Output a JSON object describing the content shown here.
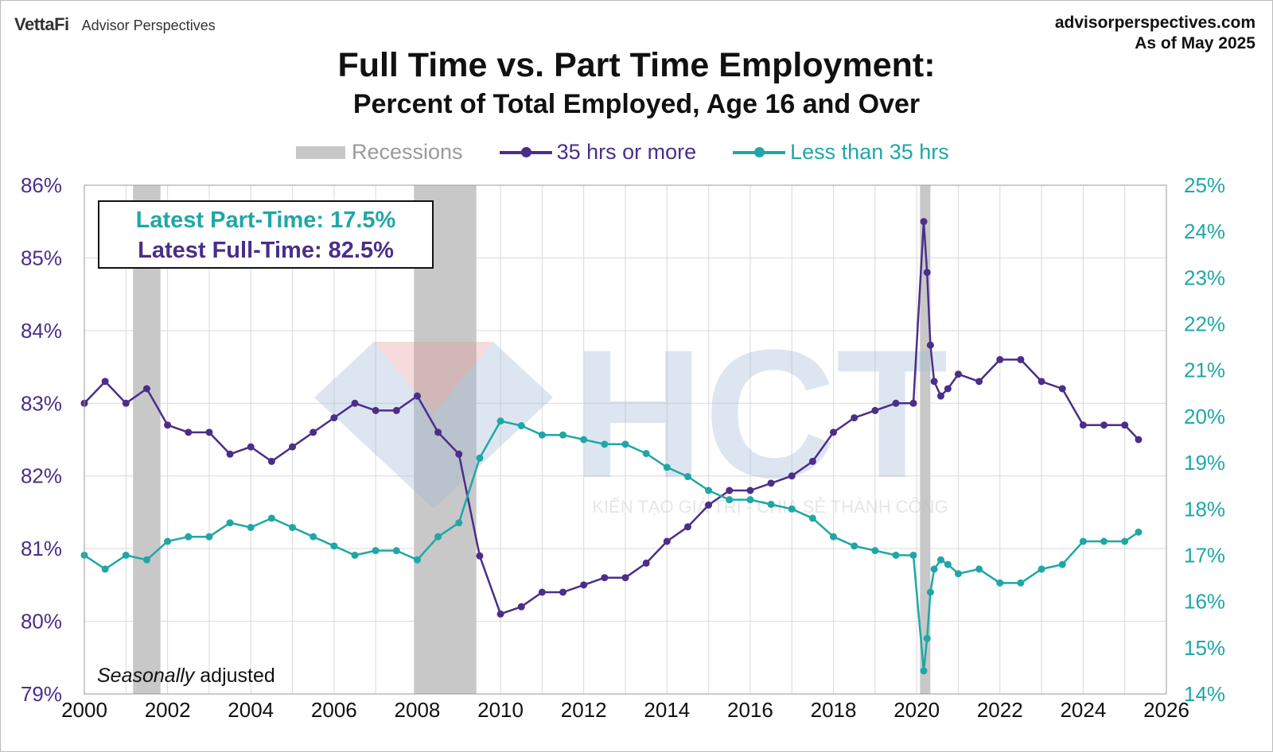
{
  "header": {
    "brand_primary": "VettaFi",
    "brand_secondary": "Advisor Perspectives",
    "site": "advisorperspectives.com",
    "as_of": "As of May 2025"
  },
  "watermark": {
    "letters": "HCT",
    "tagline": "KIẾN TẠO GIÁ TRỊ - CHIA SẺ THÀNH CÔNG"
  },
  "annotations": {
    "latest_part_time": "Latest Part-Time: 17.5%",
    "latest_full_time": "Latest Full-Time: 82.5%",
    "note_italic": "Seasonally",
    "note_rest": " adjusted"
  },
  "colors": {
    "full_time": "#4a2e8a",
    "part_time": "#1fa7a7",
    "recession": "#c8c8c8",
    "grid": "#d9d9d9"
  },
  "chart_data": {
    "type": "line",
    "title": "Full Time vs. Part Time Employment:",
    "subtitle": "Percent of Total Employed, Age 16 and Over",
    "xlim": [
      2000,
      2026
    ],
    "x_ticks": [
      "2000",
      "2002",
      "2004",
      "2006",
      "2008",
      "2010",
      "2012",
      "2014",
      "2016",
      "2018",
      "2020",
      "2022",
      "2024",
      "2026"
    ],
    "y_left": {
      "lim": [
        79,
        86
      ],
      "ticks": [
        "79%",
        "80%",
        "81%",
        "82%",
        "83%",
        "84%",
        "85%",
        "86%"
      ]
    },
    "y_right": {
      "lim": [
        14,
        25
      ],
      "ticks": [
        "14%",
        "15%",
        "16%",
        "17%",
        "18%",
        "19%",
        "20%",
        "21%",
        "22%",
        "23%",
        "24%",
        "25%"
      ]
    },
    "grid": true,
    "legend": {
      "placement": "top",
      "recessions_label": "Recessions"
    },
    "recessions": [
      [
        2001.17,
        2001.83
      ],
      [
        2007.92,
        2009.42
      ],
      [
        2020.08,
        2020.33
      ]
    ],
    "series": [
      {
        "name": "35 hrs or more",
        "axis": "left",
        "x": [
          2000.0,
          2000.5,
          2001.0,
          2001.5,
          2002.0,
          2002.5,
          2003.0,
          2003.5,
          2004.0,
          2004.5,
          2005.0,
          2005.5,
          2006.0,
          2006.5,
          2007.0,
          2007.5,
          2008.0,
          2008.5,
          2009.0,
          2009.5,
          2010.0,
          2010.5,
          2011.0,
          2011.5,
          2012.0,
          2012.5,
          2013.0,
          2013.5,
          2014.0,
          2014.5,
          2015.0,
          2015.5,
          2016.0,
          2016.5,
          2017.0,
          2017.5,
          2018.0,
          2018.5,
          2019.0,
          2019.5,
          2019.92,
          2020.17,
          2020.25,
          2020.33,
          2020.42,
          2020.58,
          2020.75,
          2021.0,
          2021.5,
          2022.0,
          2022.5,
          2023.0,
          2023.5,
          2024.0,
          2024.5,
          2025.0,
          2025.33
        ],
        "values": [
          83.0,
          83.3,
          83.0,
          83.2,
          82.7,
          82.6,
          82.6,
          82.3,
          82.4,
          82.2,
          82.4,
          82.6,
          82.8,
          83.0,
          82.9,
          82.9,
          83.1,
          82.6,
          82.3,
          80.9,
          80.1,
          80.2,
          80.4,
          80.4,
          80.5,
          80.6,
          80.6,
          80.8,
          81.1,
          81.3,
          81.6,
          81.8,
          81.8,
          81.9,
          82.0,
          82.2,
          82.6,
          82.8,
          82.9,
          83.0,
          83.0,
          85.5,
          84.8,
          83.8,
          83.3,
          83.1,
          83.2,
          83.4,
          83.3,
          83.6,
          83.6,
          83.3,
          83.2,
          82.7,
          82.7,
          82.7,
          82.5
        ]
      },
      {
        "name": "Less than 35 hrs",
        "axis": "right",
        "x": [
          2000.0,
          2000.5,
          2001.0,
          2001.5,
          2002.0,
          2002.5,
          2003.0,
          2003.5,
          2004.0,
          2004.5,
          2005.0,
          2005.5,
          2006.0,
          2006.5,
          2007.0,
          2007.5,
          2008.0,
          2008.5,
          2009.0,
          2009.5,
          2010.0,
          2010.5,
          2011.0,
          2011.5,
          2012.0,
          2012.5,
          2013.0,
          2013.5,
          2014.0,
          2014.5,
          2015.0,
          2015.5,
          2016.0,
          2016.5,
          2017.0,
          2017.5,
          2018.0,
          2018.5,
          2019.0,
          2019.5,
          2019.92,
          2020.17,
          2020.25,
          2020.33,
          2020.42,
          2020.58,
          2020.75,
          2021.0,
          2021.5,
          2022.0,
          2022.5,
          2023.0,
          2023.5,
          2024.0,
          2024.5,
          2025.0,
          2025.33
        ],
        "values": [
          17.0,
          16.7,
          17.0,
          16.9,
          17.3,
          17.4,
          17.4,
          17.7,
          17.6,
          17.8,
          17.6,
          17.4,
          17.2,
          17.0,
          17.1,
          17.1,
          16.9,
          17.4,
          17.7,
          19.1,
          19.9,
          19.8,
          19.6,
          19.6,
          19.5,
          19.4,
          19.4,
          19.2,
          18.9,
          18.7,
          18.4,
          18.2,
          18.2,
          18.1,
          18.0,
          17.8,
          17.4,
          17.2,
          17.1,
          17.0,
          17.0,
          14.5,
          15.2,
          16.2,
          16.7,
          16.9,
          16.8,
          16.6,
          16.7,
          16.4,
          16.4,
          16.7,
          16.8,
          17.3,
          17.3,
          17.3,
          17.5
        ]
      }
    ]
  }
}
